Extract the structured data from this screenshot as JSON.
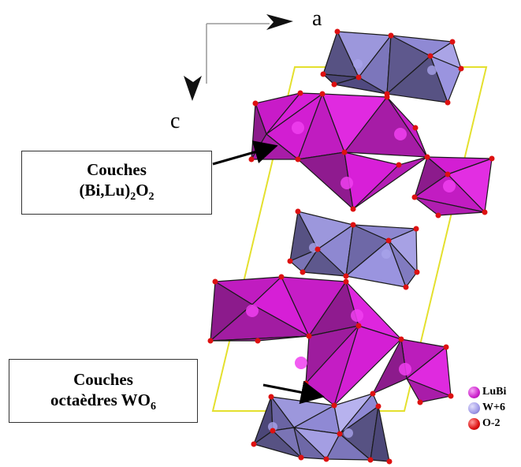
{
  "axes": {
    "a_label": "a",
    "c_label": "c"
  },
  "labels": {
    "bilu_line1": "Couches",
    "bilu_line2": "(Bi,Lu)",
    "bilu_sub1": "2",
    "bilu_o": "O",
    "bilu_sub2": "2",
    "wo6_line1": "Couches",
    "wo6_line2": "octaèdres WO",
    "wo6_sub": "6"
  },
  "legend": [
    {
      "label": "LuBi",
      "color": "#cc22cc"
    },
    {
      "label": "W+6",
      "color": "#9f98e8"
    },
    {
      "label": "O-2",
      "color": "#dd1111"
    }
  ],
  "colors": {
    "bilu_light": "#d81fd8",
    "bilu_dark": "#8c1b8c",
    "w_light": "#9c97dc",
    "w_dark": "#575283",
    "oxygen": "#dd1111",
    "unit_cell": "#e4e02e"
  }
}
